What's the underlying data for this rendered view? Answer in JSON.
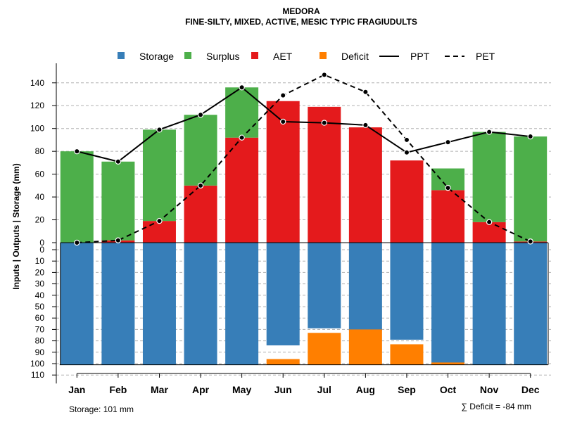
{
  "chart_data": {
    "type": "bar",
    "title": "MEDORA",
    "subtitle": "FINE-SILTY, MIXED, ACTIVE, MESIC TYPIC FRAGIUDULTS",
    "ylabel": "Inputs | Outputs | Storage    (mm)",
    "categories": [
      "Jan",
      "Feb",
      "Mar",
      "Apr",
      "May",
      "Jun",
      "Jul",
      "Aug",
      "Sep",
      "Oct",
      "Nov",
      "Dec"
    ],
    "upper_ylim": [
      0,
      150
    ],
    "upper_ticks": [
      0,
      20,
      40,
      60,
      80,
      100,
      120,
      140
    ],
    "lower_ylim": [
      0,
      110
    ],
    "lower_ticks": [
      0,
      10,
      20,
      30,
      40,
      50,
      60,
      70,
      80,
      90,
      100,
      110
    ],
    "legend": [
      {
        "key": "storage",
        "label": "Storage",
        "kind": "box",
        "color": "#377EB8"
      },
      {
        "key": "surplus",
        "label": "Surplus",
        "kind": "box",
        "color": "#4DAF4A"
      },
      {
        "key": "aet",
        "label": "AET",
        "kind": "box",
        "color": "#E41A1C"
      },
      {
        "key": "deficit",
        "label": "Deficit",
        "kind": "box",
        "color": "#FF7F00"
      },
      {
        "key": "ppt",
        "label": "PPT",
        "kind": "solid",
        "color": "#000000"
      },
      {
        "key": "pet",
        "label": "PET",
        "kind": "dashed",
        "color": "#000000"
      }
    ],
    "series": [
      {
        "name": "AET",
        "color": "#E41A1C",
        "values": [
          0,
          2,
          19,
          50,
          92,
          124,
          119,
          101,
          72,
          46,
          18,
          1
        ]
      },
      {
        "name": "Surplus",
        "color": "#4DAF4A",
        "values": [
          80,
          69,
          80,
          62,
          44,
          0,
          0,
          0,
          0,
          19,
          79,
          92
        ]
      },
      {
        "name": "Storage",
        "color": "#377EB8",
        "values": [
          101,
          101,
          101,
          101,
          101,
          84,
          69,
          71,
          79,
          101,
          101,
          101
        ]
      },
      {
        "name": "Deficit",
        "color": "#FF7F00",
        "values": [
          0,
          0,
          0,
          0,
          0,
          5,
          28,
          31,
          18,
          2,
          0,
          0
        ]
      },
      {
        "name": "PPT",
        "color": "#000000",
        "values": [
          80,
          71,
          99,
          112,
          136,
          106,
          105,
          103,
          79,
          88,
          97,
          93
        ]
      },
      {
        "name": "PET",
        "color": "#000000",
        "values": [
          0,
          2,
          19,
          50,
          92,
          129,
          147,
          132,
          90,
          48,
          18,
          1
        ]
      }
    ],
    "storage_capacity": 101,
    "footer_left": "Storage: 101 mm",
    "footer_right": "∑ Deficit = -84 mm"
  }
}
